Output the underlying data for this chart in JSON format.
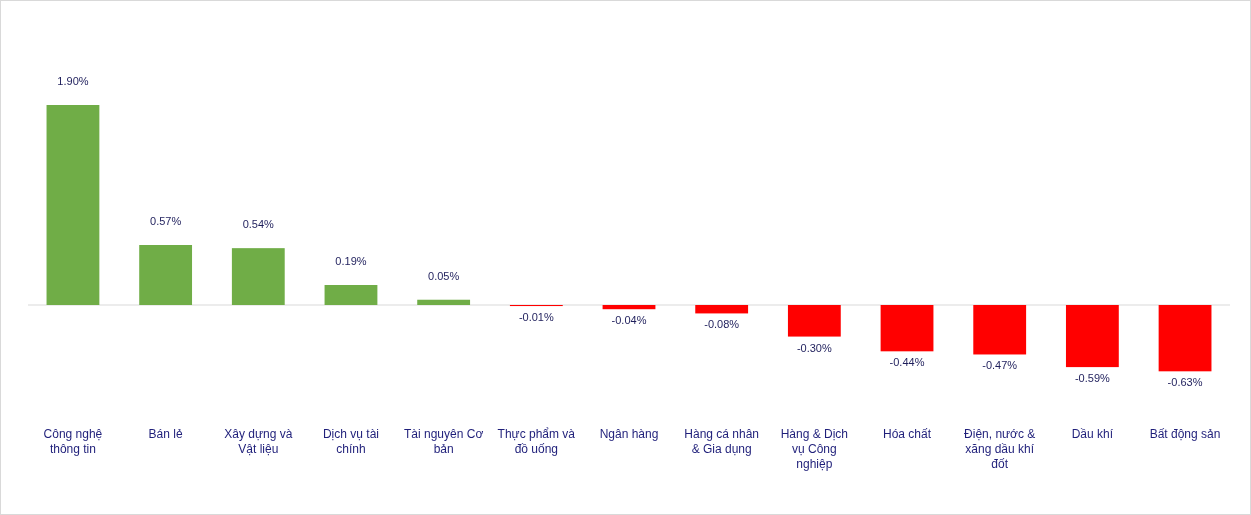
{
  "chart_data": {
    "type": "bar",
    "categories": [
      "Công nghệ thông tin",
      "Bán lẻ",
      "Xây dựng và Vật liệu",
      "Dịch vụ tài chính",
      "Tài nguyên Cơ bản",
      "Thực phẩm và đồ uống",
      "Ngân hàng",
      "Hàng cá nhân & Gia dụng",
      "Hàng & Dịch vụ Công nghiệp",
      "Hóa chất",
      "Điện, nước & xăng dầu khí đốt",
      "Dầu khí",
      "Bất động sản"
    ],
    "values": [
      1.9,
      0.57,
      0.54,
      0.19,
      0.05,
      -0.01,
      -0.04,
      -0.08,
      -0.3,
      -0.44,
      -0.47,
      -0.59,
      -0.63
    ],
    "colors": [
      "#70ad47",
      "#70ad47",
      "#70ad47",
      "#70ad47",
      "#70ad47",
      "#ff0000",
      "#ff0000",
      "#ff0000",
      "#ff0000",
      "#ff0000",
      "#ff0000",
      "#ff0000",
      "#ff0000"
    ],
    "value_labels": [
      "1.90%",
      "0.57%",
      "0.54%",
      "0.19%",
      "0.05%",
      "-0.01%",
      "-0.04%",
      "-0.08%",
      "-0.30%",
      "-0.44%",
      "-0.47%",
      "-0.59%",
      "-0.63%"
    ]
  }
}
